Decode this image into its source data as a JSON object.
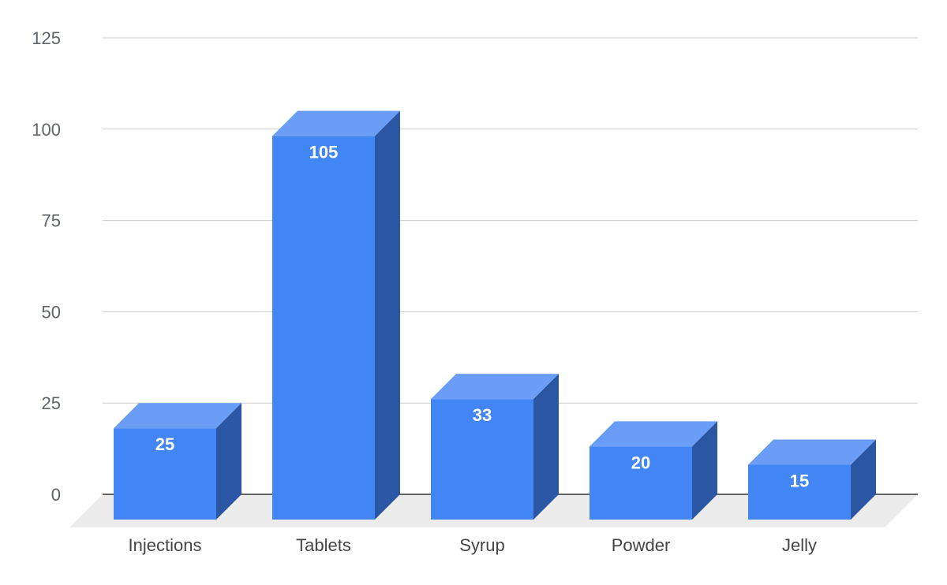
{
  "chart_data": {
    "type": "bar",
    "style": "3d",
    "categories": [
      "Injections",
      "Tablets",
      "Syrup",
      "Powder",
      "Jelly"
    ],
    "values": [
      25,
      105,
      33,
      20,
      15
    ],
    "ylim": [
      0,
      125
    ],
    "yticks": [
      0,
      25,
      50,
      75,
      100,
      125
    ],
    "grid": true,
    "legend": "none",
    "colors": {
      "front": "#4285f4",
      "top": "#6a9ef6",
      "side": "#2a56a3",
      "floor": "#ececec",
      "grid": "#cccccc",
      "baseline": "#333333"
    }
  }
}
